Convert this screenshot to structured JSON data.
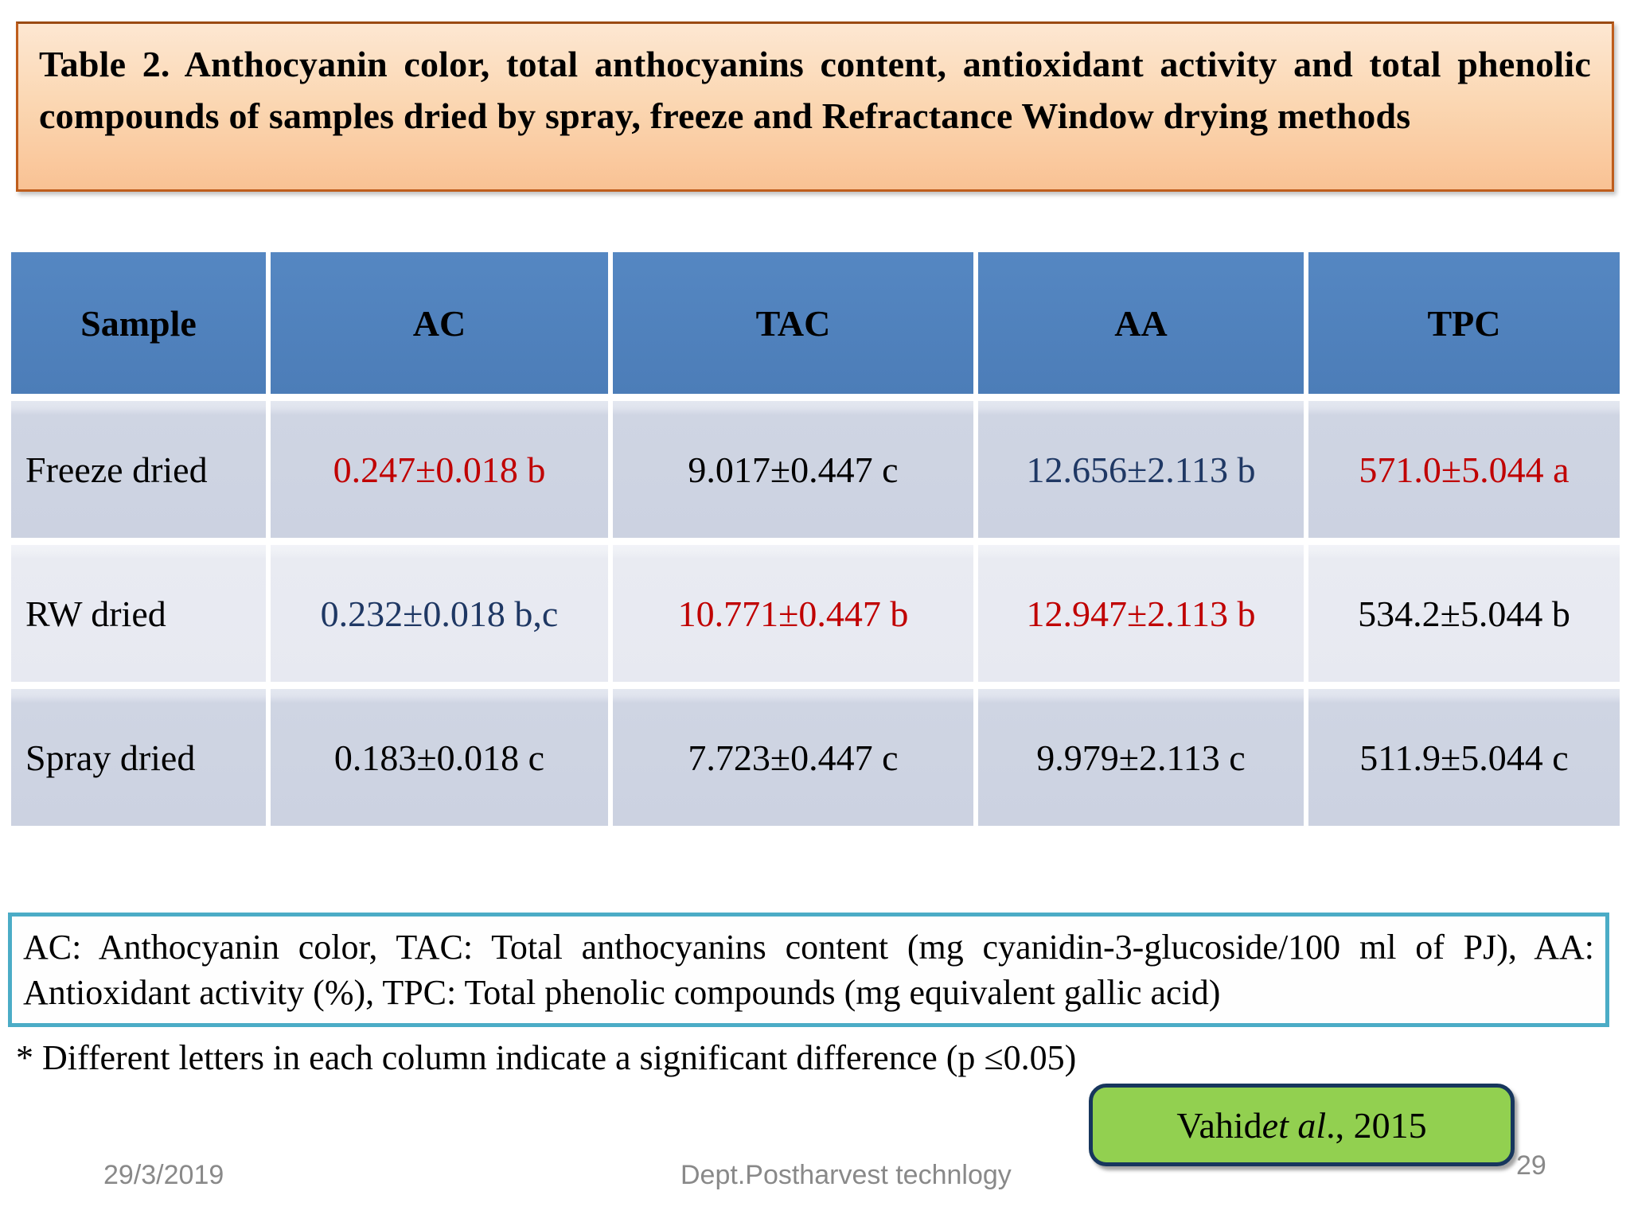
{
  "slide": {
    "title": "Table 2. Anthocyanin color, total anthocyanins content, antioxidant activity and total phenolic compounds of samples dried by spray, freeze and Refractance Window drying methods",
    "colors": {
      "title_border": "#BE5D1C",
      "title_bg_top": "#FDE7D2",
      "title_bg_bottom": "#F9C294",
      "header_bg": "#4E81BD",
      "row_odd_bg": "#CFD5E3",
      "row_even_bg": "#E9EBF2",
      "value_red": "#C00000",
      "value_navy": "#1F3864",
      "value_black": "#000000",
      "footnote_border": "#4BACC6",
      "citation_bg": "#92D050",
      "citation_border": "#17365D",
      "footer_gray": "#898989"
    },
    "table": {
      "headers": [
        "Sample",
        "AC",
        "TAC",
        "AA",
        "TPC"
      ],
      "rows": [
        {
          "sample": "Freeze dried",
          "cells": [
            {
              "text": "0.247±0.018 b",
              "color": "#C00000"
            },
            {
              "text": "9.017±0.447 c",
              "color": "#000000"
            },
            {
              "text": "12.656±2.113 b",
              "color": "#1F3864"
            },
            {
              "text": "571.0±5.044 a",
              "color": "#C00000"
            }
          ]
        },
        {
          "sample": "RW dried",
          "cells": [
            {
              "text": "0.232±0.018 b,c",
              "color": "#1F3864"
            },
            {
              "text": "10.771±0.447 b",
              "color": "#C00000"
            },
            {
              "text": "12.947±2.113 b",
              "color": "#C00000"
            },
            {
              "text": "534.2±5.044 b",
              "color": "#000000"
            }
          ]
        },
        {
          "sample": "Spray dried",
          "cells": [
            {
              "text": "0.183±0.018 c",
              "color": "#000000"
            },
            {
              "text": "7.723±0.447 c",
              "color": "#000000"
            },
            {
              "text": "9.979±2.113 c",
              "color": "#000000"
            },
            {
              "text": "511.9±5.044 c",
              "color": "#000000"
            }
          ]
        }
      ]
    },
    "footnote": "AC: Anthocyanin color, TAC: Total anthocyanins content (mg cyanidin-3-glucoside/100 ml of PJ), AA: Antioxidant activity (%), TPC: Total phenolic compounds (mg equivalent gallic acid)",
    "significance_note": "* Different letters in each column indicate a significant difference (p ≤0.05)",
    "citation": {
      "prefix": "Vahid ",
      "italic": "et al",
      "suffix": "., 2015"
    },
    "footer": {
      "date": "29/3/2019",
      "department": "Dept.Postharvest technlogy",
      "page": "29"
    }
  }
}
